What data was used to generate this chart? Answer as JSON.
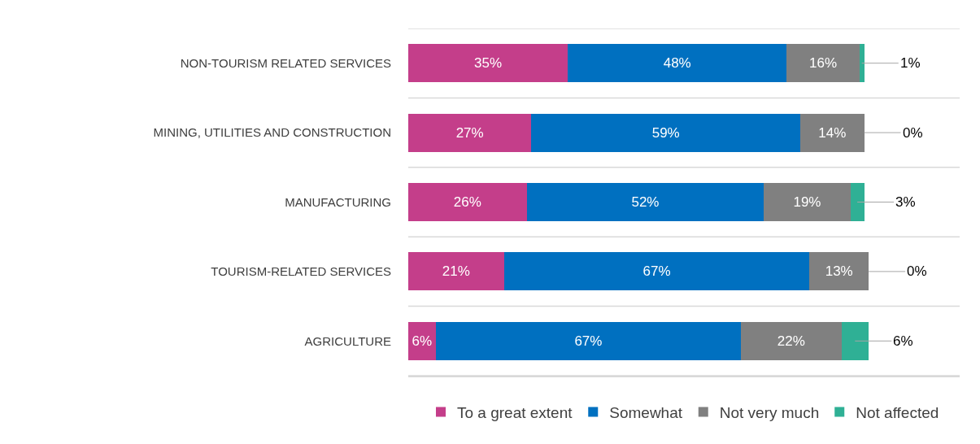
{
  "chart_data": {
    "type": "bar",
    "orientation": "horizontal",
    "stacked": true,
    "tick_labels": "y",
    "grid": "y",
    "legend": "bottom",
    "categories": [
      "NON-TOURISM RELATED SERVICES",
      "MINING, UTILITIES AND CONSTRUCTION",
      "MANUFACTURING",
      "TOURISM-RELATED SERVICES",
      "AGRICULTURE"
    ],
    "series": [
      {
        "name": "To a great extent",
        "color": "#c43e8a",
        "values": [
          35,
          27,
          26,
          21,
          6
        ],
        "value_labels": [
          "35%",
          "27%",
          "26%",
          "21%",
          "6%"
        ]
      },
      {
        "name": "Somewhat",
        "color": "#0070c0",
        "values": [
          48,
          59,
          52,
          67,
          67
        ],
        "value_labels": [
          "48%",
          "59%",
          "52%",
          "67%",
          "67%"
        ]
      },
      {
        "name": "Not very much",
        "color": "#808080",
        "values": [
          16,
          14,
          19,
          13,
          22
        ],
        "value_labels": [
          "16%",
          "14%",
          "19%",
          "13%",
          "22%"
        ]
      },
      {
        "name": "Not affected",
        "color": "#2fb095",
        "values": [
          1,
          0,
          3,
          0,
          6
        ],
        "value_labels": [
          "1%",
          "0%",
          "3%",
          "0%",
          "6%"
        ]
      }
    ]
  }
}
